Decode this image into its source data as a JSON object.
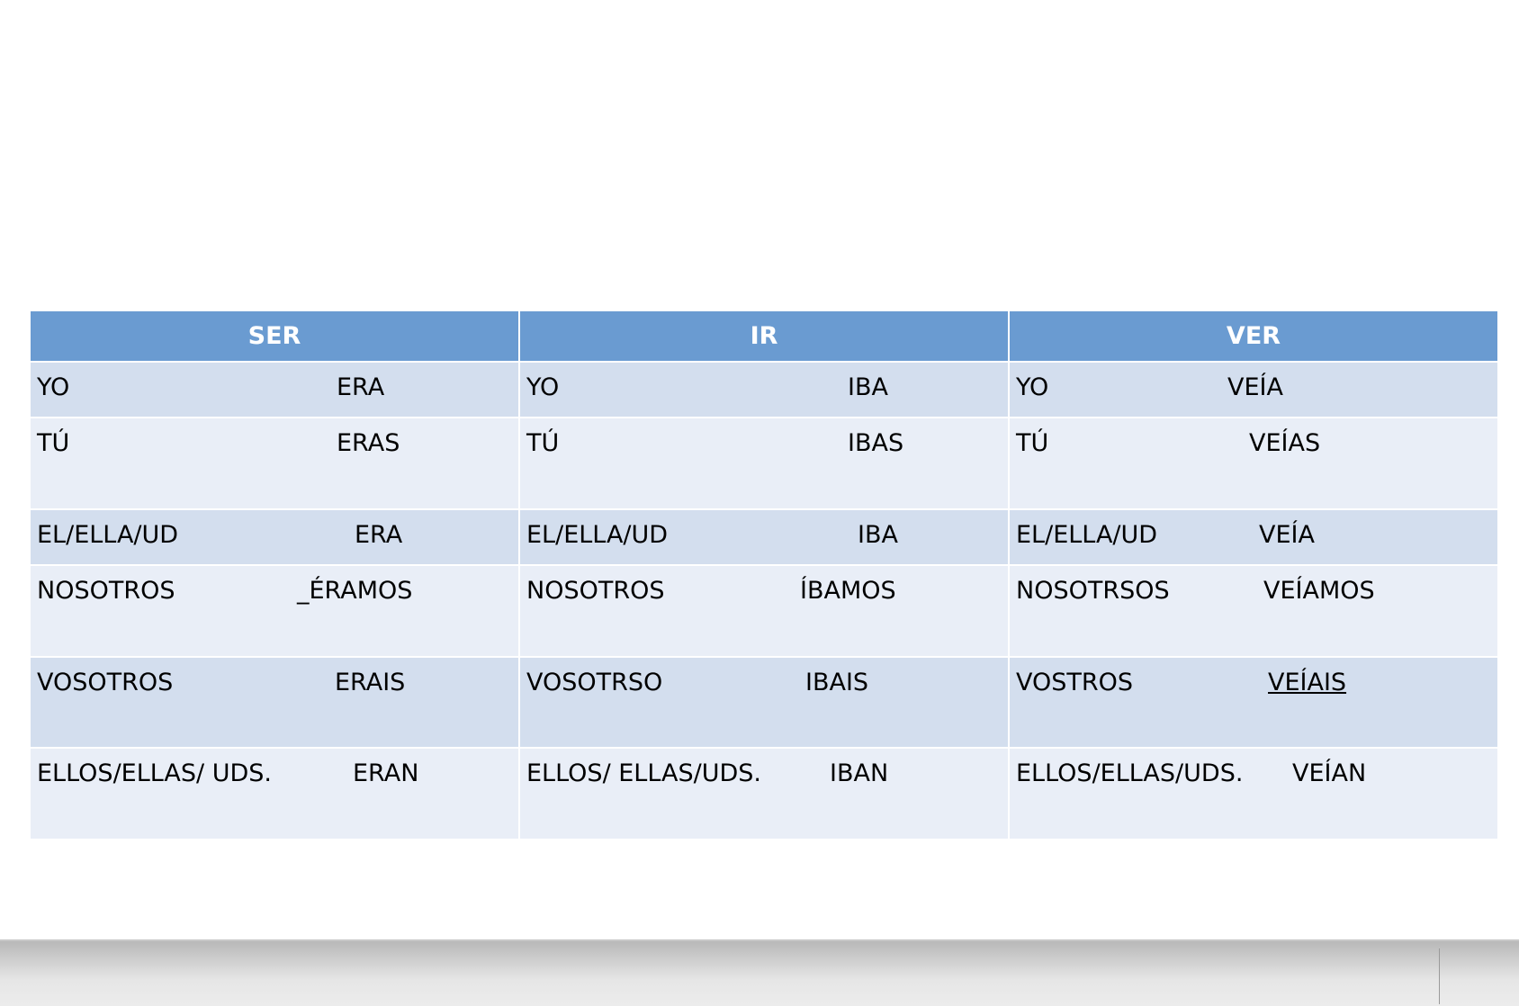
{
  "table": {
    "header": [
      "SER",
      "IR",
      "VER"
    ],
    "rows": [
      [
        {
          "pronoun": "YO",
          "form": "ERA"
        },
        {
          "pronoun": "YO",
          "form": "IBA"
        },
        {
          "pronoun": "YO",
          "form": "VEÍA"
        }
      ],
      [
        {
          "pronoun": "TÚ",
          "form": "ERAS"
        },
        {
          "pronoun": "TÚ",
          "form": "IBAS"
        },
        {
          "pronoun": "TÚ",
          "form": "VEÍAS"
        }
      ],
      [
        {
          "pronoun": "EL/ELLA/UD",
          "form": "ERA"
        },
        {
          "pronoun": "EL/ELLA/UD",
          "form": "IBA"
        },
        {
          "pronoun": "EL/ELLA/UD",
          "form": "VEÍA"
        }
      ],
      [
        {
          "pronoun": "NOSOTROS",
          "form": "_ÉRAMOS"
        },
        {
          "pronoun": "NOSOTROS",
          "form": "ÍBAMOS"
        },
        {
          "pronoun": "NOSOTRSOS",
          "form": "VEÍAMOS"
        }
      ],
      [
        {
          "pronoun": "VOSOTROS",
          "form": "ERAIS"
        },
        {
          "pronoun": "VOSOTRSO",
          "form": "IBAIS"
        },
        {
          "pronoun": "VOSTROS",
          "form": "VEÍAIS"
        }
      ],
      [
        {
          "pronoun": "ELLOS/ELLAS/ UDS.",
          "form": "ERAN"
        },
        {
          "pronoun": "ELLOS/ ELLAS/UDS.",
          "form": "IBAN"
        },
        {
          "pronoun": "ELLOS/ELLAS/UDS.",
          "form": "VEÍAN"
        }
      ]
    ]
  }
}
